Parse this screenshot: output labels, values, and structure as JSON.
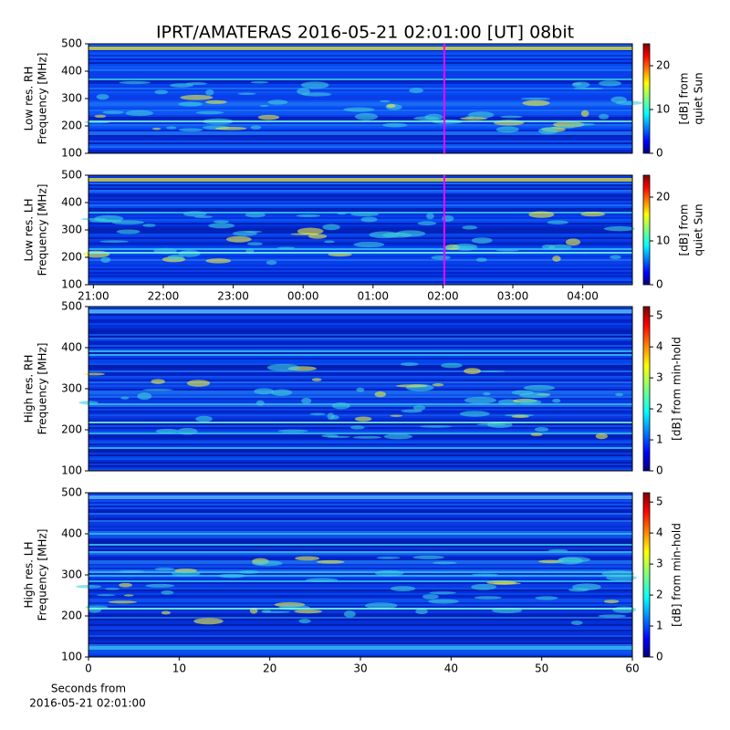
{
  "chart_data": [
    {
      "type": "heatmap",
      "title": "IPRT/AMATERAS 2016-05-21 02:01:00 [UT]   08bit",
      "ylabel": [
        "Low res. RH",
        "Frequency [MHz]"
      ],
      "ylim": [
        100,
        500
      ],
      "yticks": [
        100,
        200,
        300,
        400,
        500
      ],
      "xlim": [
        -3.07,
        4.71
      ],
      "marker_x": 2.02,
      "marker_color": "#ff00ff",
      "colorbar": {
        "label": [
          "[dB] from",
          "quiet Sun"
        ],
        "lim": [
          0,
          25
        ],
        "ticks": [
          0,
          10,
          20
        ]
      }
    },
    {
      "type": "heatmap",
      "ylabel": [
        "Low res. LH",
        "Frequency [MHz]"
      ],
      "ylim": [
        100,
        500
      ],
      "yticks": [
        100,
        200,
        300,
        400,
        500
      ],
      "xlim": [
        -3.07,
        4.71
      ],
      "marker_x": 2.02,
      "marker_color": "#ff00ff",
      "xticks": [
        {
          "value": -3,
          "label": "21:00"
        },
        {
          "value": -2,
          "label": "22:00"
        },
        {
          "value": -1,
          "label": "23:00"
        },
        {
          "value": 0,
          "label": "00:00"
        },
        {
          "value": 1,
          "label": "01:00"
        },
        {
          "value": 2,
          "label": "02:00"
        },
        {
          "value": 3,
          "label": "03:00"
        },
        {
          "value": 4,
          "label": "04:00"
        }
      ],
      "colorbar": {
        "label": [
          "[dB] from",
          "quiet Sun"
        ],
        "lim": [
          0,
          25
        ],
        "ticks": [
          0,
          10,
          20
        ]
      }
    },
    {
      "type": "heatmap",
      "ylabel": [
        "High res. RH",
        "Frequency [MHz]"
      ],
      "ylim": [
        100,
        500
      ],
      "yticks": [
        100,
        200,
        300,
        400,
        500
      ],
      "xlim": [
        0,
        60
      ],
      "colorbar": {
        "label": [
          "[dB] from min-hold"
        ],
        "lim": [
          0,
          5.3
        ],
        "ticks": [
          0,
          1,
          2,
          3,
          4,
          5
        ]
      }
    },
    {
      "type": "heatmap",
      "ylabel": [
        "High res. LH",
        "Frequency [MHz]"
      ],
      "ylim": [
        100,
        500
      ],
      "yticks": [
        100,
        200,
        300,
        400,
        500
      ],
      "xlim": [
        0,
        60
      ],
      "xticks": [
        0,
        10,
        20,
        30,
        40,
        50,
        60
      ],
      "xlabel": [
        "Seconds from",
        "2016-05-21 02:01:00"
      ],
      "colorbar": {
        "label": [
          "[dB] from min-hold"
        ],
        "lim": [
          0,
          5.3
        ],
        "ticks": [
          0,
          1,
          2,
          3,
          4,
          5
        ]
      }
    }
  ]
}
